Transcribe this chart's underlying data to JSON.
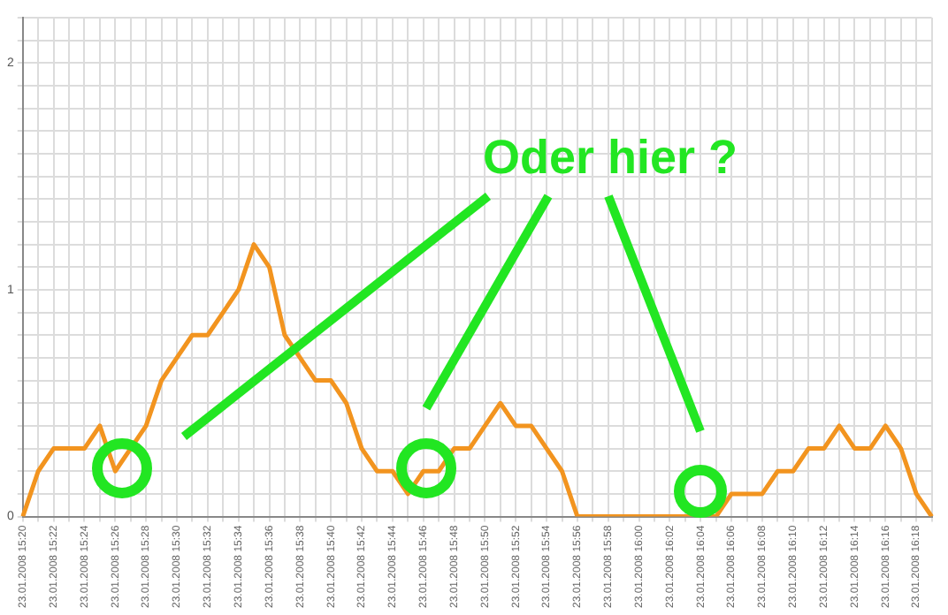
{
  "chart_data": {
    "type": "line",
    "categories": [
      "23.01.2008 15:20",
      null,
      "23.01.2008 15:22",
      null,
      "23.01.2008 15:24",
      null,
      "23.01.2008 15:26",
      null,
      "23.01.2008 15:28",
      null,
      "23.01.2008 15:30",
      null,
      "23.01.2008 15:32",
      null,
      "23.01.2008 15:34",
      null,
      "23.01.2008 15:36",
      null,
      "23.01.2008 15:38",
      null,
      "23.01.2008 15:40",
      null,
      "23.01.2008 15:42",
      null,
      "23.01.2008 15:44",
      null,
      "23.01.2008 15:46",
      null,
      "23.01.2008 15:48",
      null,
      "23.01.2008 15:50",
      null,
      "23.01.2008 15:52",
      null,
      "23.01.2008 15:54",
      null,
      "23.01.2008 15:56",
      null,
      "23.01.2008 15:58",
      null,
      "23.01.2008 16:00",
      null,
      "23.01.2008 16:02",
      null,
      "23.01.2008 16:04",
      null,
      "23.01.2008 16:06",
      null,
      "23.01.2008 16:08",
      null,
      "23.01.2008 16:10",
      null,
      "23.01.2008 16:12",
      null,
      "23.01.2008 16:14",
      null,
      "23.01.2008 16:16",
      null,
      "23.01.2008 16:18",
      null
    ],
    "series": [
      {
        "color": "#f2941f",
        "values": [
          0,
          0.2,
          0.3,
          0.3,
          0.3,
          0.4,
          0.2,
          0.3,
          0.4,
          0.6,
          0.7,
          0.8,
          0.8,
          0.9,
          1.0,
          1.2,
          1.1,
          0.8,
          0.7,
          0.6,
          0.6,
          0.5,
          0.3,
          0.2,
          0.2,
          0.1,
          0.2,
          0.2,
          0.3,
          0.3,
          0.4,
          0.5,
          0.4,
          0.4,
          0.3,
          0.2,
          0,
          0,
          0,
          0,
          0,
          0,
          0,
          0,
          0,
          0,
          0.1,
          0.1,
          0.1,
          0.2,
          0.2,
          0.3,
          0.3,
          0.4,
          0.3,
          0.3,
          0.4,
          0.3,
          0.1,
          0
        ]
      }
    ],
    "ylim": [
      0,
      2.2
    ],
    "yticks": [
      0,
      {
        "value": 0.1,
        "label": null
      },
      {
        "value": 0.2,
        "label": null
      },
      {
        "value": 0.3,
        "label": null
      },
      {
        "value": 0.4,
        "label": null
      },
      {
        "value": 0.5,
        "label": null
      },
      {
        "value": 0.6,
        "label": null
      },
      {
        "value": 0.7,
        "label": null
      },
      {
        "value": 0.8,
        "label": null
      },
      {
        "value": 0.9,
        "label": null
      },
      1,
      {
        "value": 1.1,
        "label": null
      },
      {
        "value": 1.2,
        "label": null
      },
      {
        "value": 1.3,
        "label": null
      },
      {
        "value": 1.4,
        "label": null
      },
      {
        "value": 1.5,
        "label": null
      },
      {
        "value": 1.6,
        "label": null
      },
      {
        "value": 1.7,
        "label": null
      },
      {
        "value": 1.8,
        "label": null
      },
      {
        "value": 1.9,
        "label": null
      },
      2,
      {
        "value": 2.1,
        "label": null
      },
      {
        "value": 2.2,
        "label": null
      }
    ],
    "grid": true,
    "legend": false,
    "marker": "none",
    "line_style": "solid",
    "annotations": [
      "Oder hier ?"
    ]
  }
}
